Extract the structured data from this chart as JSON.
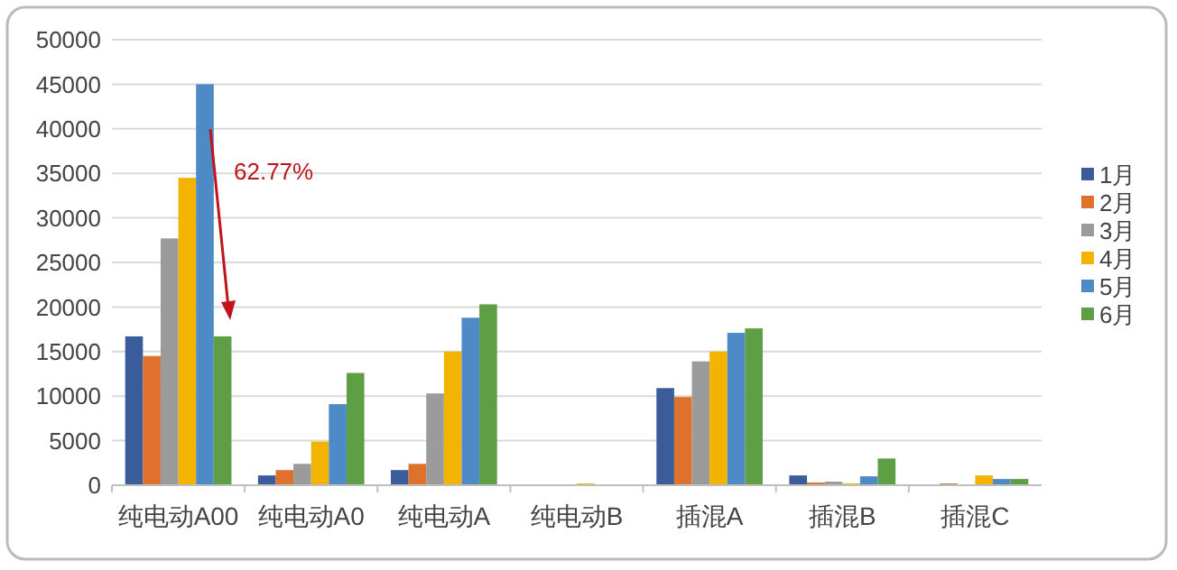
{
  "chart_data": {
    "type": "bar",
    "categories": [
      "纯电动A00",
      "纯电动A0",
      "纯电动A",
      "纯电动B",
      "插混A",
      "插混B",
      "插混C"
    ],
    "series": [
      {
        "name": "1月",
        "color": "#3a5c9a",
        "values": [
          16700,
          1100,
          1700,
          0,
          10900,
          1100,
          0
        ]
      },
      {
        "name": "2月",
        "color": "#e0712c",
        "values": [
          14500,
          1700,
          2400,
          0,
          9900,
          300,
          200
        ]
      },
      {
        "name": "3月",
        "color": "#9b9b9b",
        "values": [
          27700,
          2400,
          10300,
          100,
          13900,
          400,
          0
        ]
      },
      {
        "name": "4月",
        "color": "#f2b400",
        "values": [
          34500,
          4900,
          15000,
          200,
          15000,
          200,
          1100
        ]
      },
      {
        "name": "5月",
        "color": "#4d8ac6",
        "values": [
          45000,
          9100,
          18800,
          0,
          17100,
          1000,
          700
        ]
      },
      {
        "name": "6月",
        "color": "#5e9e44",
        "values": [
          16700,
          12600,
          20300,
          0,
          17600,
          3000,
          700
        ]
      }
    ],
    "ylim": [
      0,
      50000
    ],
    "yticks": [
      0,
      5000,
      10000,
      15000,
      20000,
      25000,
      30000,
      35000,
      40000,
      45000,
      50000
    ],
    "grid": "y",
    "legend": "right",
    "annotations": [
      "62.77%"
    ]
  }
}
